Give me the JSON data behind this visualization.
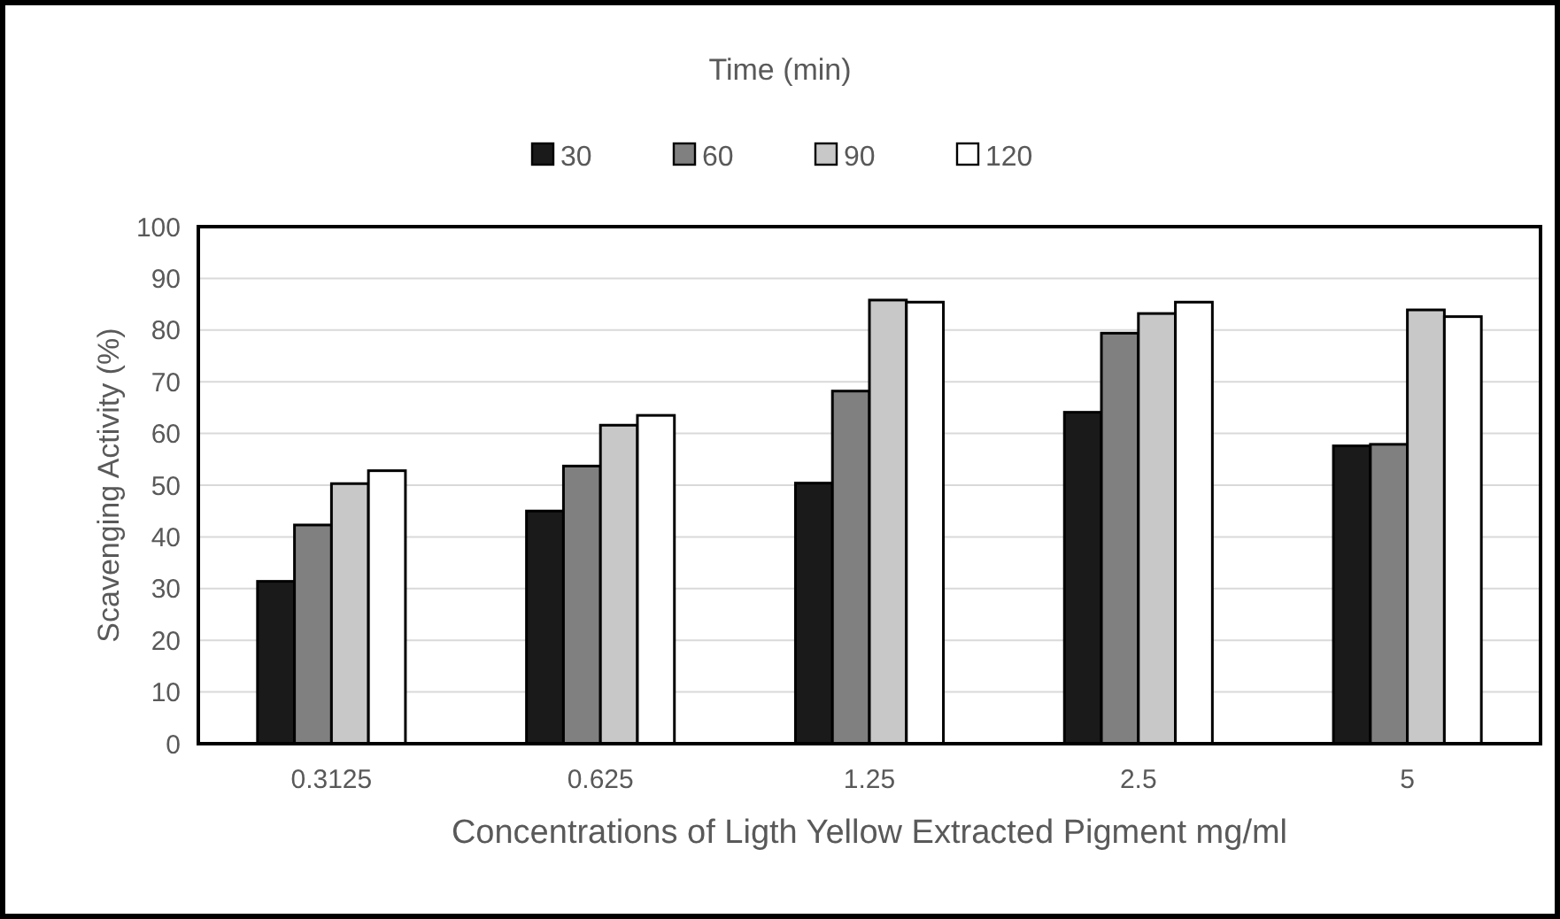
{
  "chart_data": {
    "type": "bar",
    "xlabel": "Concentrations of Ligth Yellow Extracted Pigment mg/ml",
    "ylabel": "Scavenging Activity (%)",
    "legend_title": "Time (min)",
    "legend": "top",
    "categories": [
      "0.3125",
      "0.625",
      "1.25",
      "2.5",
      "5"
    ],
    "series": [
      {
        "name": "30",
        "color": "#1a1a1a",
        "values": [
          31.4,
          45.0,
          50.4,
          64.1,
          57.6
        ]
      },
      {
        "name": "60",
        "color": "#808080",
        "values": [
          42.3,
          53.7,
          68.2,
          79.4,
          57.9
        ]
      },
      {
        "name": "90",
        "color": "#c8c8c8",
        "values": [
          50.3,
          61.6,
          85.8,
          83.2,
          83.9
        ]
      },
      {
        "name": "120",
        "color": "#ffffff",
        "values": [
          52.8,
          63.5,
          85.4,
          85.4,
          82.6
        ]
      }
    ],
    "ylim": [
      0,
      100
    ],
    "yticks": [
      0,
      10,
      20,
      30,
      40,
      50,
      60,
      70,
      80,
      90,
      100
    ],
    "grid": "y"
  }
}
